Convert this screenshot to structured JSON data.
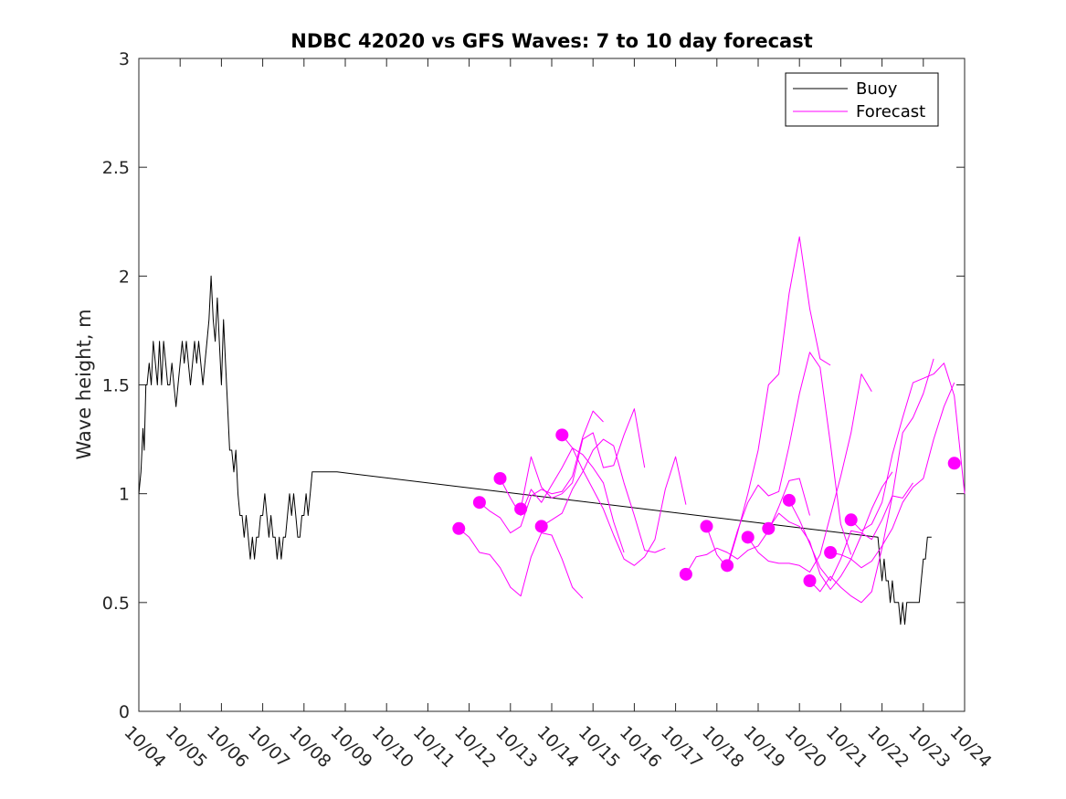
{
  "chart_data": {
    "type": "line",
    "title": "NDBC 42020 vs GFS Waves: 7 to 10 day forecast",
    "xlabel": "",
    "ylabel": "Wave height, m",
    "xlim": [
      0,
      20
    ],
    "ylim": [
      0,
      3
    ],
    "x_ticks": [
      0,
      1,
      2,
      3,
      4,
      5,
      6,
      7,
      8,
      9,
      10,
      11,
      12,
      13,
      14,
      15,
      16,
      17,
      18,
      19,
      20
    ],
    "x_tick_labels": [
      "10/04",
      "10/05",
      "10/06",
      "10/07",
      "10/08",
      "10/09",
      "10/10",
      "10/11",
      "10/12",
      "10/13",
      "10/14",
      "10/15",
      "10/16",
      "10/17",
      "10/18",
      "10/19",
      "10/20",
      "10/21",
      "10/22",
      "10/23",
      "10/24"
    ],
    "y_ticks": [
      0,
      0.5,
      1,
      1.5,
      2,
      2.5,
      3
    ],
    "y_tick_labels": [
      "0",
      "0.5",
      "1",
      "1.5",
      "2",
      "2.5",
      "3"
    ],
    "legend": {
      "position": "top-right",
      "entries": [
        {
          "label": "Buoy",
          "color": "#000000"
        },
        {
          "label": "Forecast",
          "color": "#ff00ff"
        }
      ]
    },
    "x_units": "days since 10/04",
    "series": [
      {
        "name": "Buoy",
        "color": "#000000",
        "x": [
          0,
          0.05,
          0.1,
          0.13,
          0.17,
          0.2,
          0.25,
          0.3,
          0.35,
          0.4,
          0.45,
          0.5,
          0.55,
          0.6,
          0.65,
          0.7,
          0.75,
          0.8,
          0.85,
          0.9,
          0.95,
          1.0,
          1.05,
          1.1,
          1.15,
          1.2,
          1.25,
          1.3,
          1.35,
          1.4,
          1.45,
          1.5,
          1.55,
          1.6,
          1.65,
          1.7,
          1.75,
          1.8,
          1.85,
          1.9,
          1.95,
          2.0,
          2.05,
          2.1,
          2.15,
          2.2,
          2.25,
          2.3,
          2.35,
          2.4,
          2.45,
          2.5,
          2.55,
          2.6,
          2.65,
          2.7,
          2.75,
          2.8,
          2.85,
          2.9,
          2.95,
          3.0,
          3.05,
          3.1,
          3.15,
          3.2,
          3.25,
          3.3,
          3.35,
          3.4,
          3.45,
          3.5,
          3.55,
          3.6,
          3.65,
          3.7,
          3.75,
          3.8,
          3.85,
          3.9,
          3.95,
          4.0,
          4.05,
          4.1,
          4.15,
          4.2,
          4.25,
          4.3,
          4.35,
          4.4,
          4.45,
          4.5,
          4.55,
          4.6,
          4.65,
          4.7,
          4.75,
          4.8,
          17.9,
          17.95,
          18.0,
          18.05,
          18.1,
          18.15,
          18.2,
          18.25,
          18.3,
          18.35,
          18.4,
          18.45,
          18.5,
          18.55,
          18.6,
          18.65,
          18.7,
          18.75,
          18.8,
          18.85,
          18.9,
          18.95,
          19.0,
          19.05,
          19.1,
          19.15,
          19.2
        ],
        "y": [
          1.0,
          1.1,
          1.3,
          1.2,
          1.5,
          1.5,
          1.6,
          1.5,
          1.7,
          1.6,
          1.5,
          1.7,
          1.5,
          1.7,
          1.6,
          1.5,
          1.5,
          1.6,
          1.5,
          1.4,
          1.5,
          1.6,
          1.7,
          1.6,
          1.7,
          1.6,
          1.5,
          1.6,
          1.7,
          1.6,
          1.7,
          1.6,
          1.5,
          1.6,
          1.7,
          1.8,
          2.0,
          1.8,
          1.7,
          1.9,
          1.7,
          1.5,
          1.8,
          1.6,
          1.4,
          1.2,
          1.2,
          1.1,
          1.2,
          1.0,
          0.9,
          0.9,
          0.8,
          0.9,
          0.8,
          0.7,
          0.8,
          0.7,
          0.8,
          0.8,
          0.9,
          0.9,
          1.0,
          0.9,
          0.8,
          0.9,
          0.8,
          0.8,
          0.7,
          0.8,
          0.7,
          0.8,
          0.8,
          0.9,
          1.0,
          0.9,
          1.0,
          0.9,
          0.8,
          0.8,
          0.9,
          0.9,
          1.0,
          0.9,
          1.0,
          1.1,
          1.1,
          1.1,
          1.1,
          1.1,
          1.1,
          1.1,
          1.1,
          1.1,
          1.1,
          1.1,
          1.1,
          1.1,
          0.8,
          0.7,
          0.6,
          0.7,
          0.6,
          0.6,
          0.5,
          0.6,
          0.5,
          0.5,
          0.5,
          0.4,
          0.5,
          0.4,
          0.5,
          0.5,
          0.5,
          0.5,
          0.5,
          0.5,
          0.5,
          0.6,
          0.7,
          0.7,
          0.8,
          0.8,
          0.8
        ]
      },
      {
        "name": "Forecast",
        "color": "#ff00ff",
        "x": [
          7.75,
          8.0,
          8.25,
          8.5,
          8.75,
          9.0,
          9.25,
          9.5,
          9.75,
          10.0,
          10.25,
          10.5,
          10.75
        ],
        "y": [
          0.84,
          0.8,
          0.73,
          0.72,
          0.66,
          0.57,
          0.53,
          0.71,
          0.82,
          0.81,
          0.7,
          0.57,
          0.52
        ]
      },
      {
        "name": "Forecast",
        "color": "#ff00ff",
        "x": [
          8.25,
          8.5,
          8.75,
          9.0,
          9.25,
          9.5,
          9.75,
          10.0,
          10.25,
          10.5,
          10.75,
          11.0,
          11.25
        ],
        "y": [
          0.96,
          0.92,
          0.89,
          0.82,
          0.85,
          0.99,
          1.02,
          1.0,
          1.01,
          1.08,
          1.26,
          1.38,
          1.33
        ]
      },
      {
        "name": "Forecast",
        "color": "#ff00ff",
        "x": [
          8.75,
          9.0,
          9.25,
          9.5,
          9.75,
          10.0,
          10.25,
          10.5,
          10.75,
          11.0,
          11.25,
          11.5,
          11.75
        ],
        "y": [
          1.07,
          0.98,
          0.9,
          1.02,
          0.96,
          1.04,
          1.12,
          1.21,
          1.18,
          1.12,
          1.05,
          0.87,
          0.73
        ]
      },
      {
        "name": "Forecast",
        "color": "#ff00ff",
        "x": [
          9.25,
          9.5,
          9.75,
          10.0,
          10.25,
          10.5,
          10.75,
          11.0,
          11.25,
          11.5,
          11.75,
          12.0,
          12.25
        ],
        "y": [
          0.93,
          1.17,
          1.03,
          0.98,
          1.0,
          1.05,
          1.25,
          1.28,
          1.12,
          1.13,
          1.27,
          1.39,
          1.12
        ]
      },
      {
        "name": "Forecast",
        "color": "#ff00ff",
        "x": [
          9.75,
          10.0,
          10.25,
          10.5,
          10.75,
          11.0,
          11.25,
          11.5,
          11.75,
          12.0,
          12.25,
          12.5,
          12.75
        ],
        "y": [
          0.85,
          0.88,
          0.91,
          1.02,
          1.1,
          1.2,
          1.25,
          1.22,
          1.05,
          0.9,
          0.74,
          0.73,
          0.75
        ]
      },
      {
        "name": "Forecast",
        "color": "#ff00ff",
        "x": [
          10.25,
          10.5,
          10.75,
          11.0,
          11.25,
          11.5,
          11.75,
          12.0,
          12.25,
          12.5,
          12.75,
          13.0,
          13.25
        ],
        "y": [
          1.27,
          1.21,
          1.11,
          1.02,
          0.93,
          0.81,
          0.7,
          0.67,
          0.71,
          0.79,
          1.02,
          1.17,
          0.95
        ]
      },
      {
        "name": "Forecast",
        "color": "#ff00ff",
        "x": [
          13.25,
          13.5,
          13.75,
          14.0,
          14.25,
          14.5,
          14.75,
          15.0,
          15.25,
          15.5,
          15.75,
          16.0,
          16.25
        ],
        "y": [
          0.63,
          0.71,
          0.72,
          0.75,
          0.73,
          0.7,
          0.74,
          0.76,
          0.83,
          0.94,
          1.06,
          1.07,
          0.9
        ]
      },
      {
        "name": "Forecast",
        "color": "#ff00ff",
        "x": [
          13.75,
          14.0,
          14.25,
          14.5,
          14.75,
          15.0,
          15.25,
          15.5,
          15.75,
          16.0,
          16.25,
          16.5,
          16.75
        ],
        "y": [
          0.85,
          0.72,
          0.66,
          0.82,
          1.0,
          1.2,
          1.5,
          1.55,
          1.92,
          2.18,
          1.85,
          1.62,
          1.59
        ]
      },
      {
        "name": "Forecast",
        "color": "#ff00ff",
        "x": [
          14.25,
          14.5,
          14.75,
          15.0,
          15.25,
          15.5,
          15.75,
          16.0,
          16.25,
          16.5,
          16.75,
          17.0,
          17.25
        ],
        "y": [
          0.67,
          0.83,
          0.96,
          1.04,
          0.99,
          1.01,
          1.22,
          1.46,
          1.65,
          1.58,
          1.23,
          0.86,
          0.72
        ]
      },
      {
        "name": "Forecast",
        "color": "#ff00ff",
        "x": [
          14.75,
          15.0,
          15.25,
          15.5,
          15.75,
          16.0,
          16.25,
          16.5,
          16.75,
          17.0,
          17.25,
          17.5,
          17.75
        ],
        "y": [
          0.8,
          0.73,
          0.69,
          0.68,
          0.68,
          0.67,
          0.64,
          0.72,
          0.9,
          1.08,
          1.28,
          1.55,
          1.47
        ]
      },
      {
        "name": "Forecast",
        "color": "#ff00ff",
        "x": [
          15.25,
          15.5,
          15.75,
          16.0,
          16.25,
          16.5,
          16.75,
          17.0,
          17.25,
          17.5,
          17.75,
          18.0,
          18.25
        ],
        "y": [
          0.84,
          0.91,
          0.87,
          0.85,
          0.78,
          0.63,
          0.56,
          0.62,
          0.7,
          0.81,
          0.93,
          1.03,
          1.1
        ]
      },
      {
        "name": "Forecast",
        "color": "#ff00ff",
        "x": [
          15.75,
          16.0,
          16.25,
          16.5,
          16.75,
          17.0,
          17.25,
          17.5,
          17.75,
          18.0,
          18.25,
          18.5,
          18.75
        ],
        "y": [
          0.97,
          0.88,
          0.77,
          0.66,
          0.6,
          0.7,
          0.83,
          0.82,
          0.79,
          0.88,
          0.99,
          0.98,
          1.05
        ]
      },
      {
        "name": "Forecast",
        "color": "#ff00ff",
        "x": [
          16.25,
          16.5,
          16.75,
          17.0,
          17.25,
          17.5,
          17.75,
          18.0,
          18.25,
          18.5,
          18.75,
          19.0,
          19.25
        ],
        "y": [
          0.6,
          0.55,
          0.62,
          0.57,
          0.53,
          0.5,
          0.55,
          0.75,
          0.99,
          1.28,
          1.35,
          1.46,
          1.62
        ]
      },
      {
        "name": "Forecast",
        "color": "#ff00ff",
        "x": [
          16.75,
          17.0,
          17.25,
          17.5,
          17.75,
          18.0,
          18.25,
          18.5,
          18.75,
          19.0,
          19.25,
          19.5,
          19.75
        ],
        "y": [
          0.73,
          0.72,
          0.7,
          0.66,
          0.69,
          0.76,
          0.84,
          0.96,
          1.03,
          1.07,
          1.25,
          1.4,
          1.51
        ]
      },
      {
        "name": "Forecast",
        "color": "#ff00ff",
        "x": [
          17.25,
          17.5,
          17.75,
          18.0,
          18.25,
          18.5,
          18.75,
          19.0,
          19.25,
          19.5,
          19.75,
          20.0
        ],
        "y": [
          0.88,
          0.83,
          0.86,
          0.96,
          1.18,
          1.35,
          1.51,
          1.53,
          1.55,
          1.6,
          1.45,
          1.0
        ]
      }
    ],
    "forecast_markers": {
      "color": "#ff00ff",
      "x": [
        7.75,
        8.25,
        8.75,
        9.25,
        9.75,
        10.25,
        13.25,
        13.75,
        14.25,
        14.75,
        15.25,
        15.75,
        16.25,
        16.75,
        17.25,
        19.75
      ],
      "y": [
        0.84,
        0.96,
        1.07,
        0.93,
        0.85,
        1.27,
        0.63,
        0.85,
        0.67,
        0.8,
        0.84,
        0.97,
        0.6,
        0.73,
        0.88,
        1.14
      ]
    }
  }
}
